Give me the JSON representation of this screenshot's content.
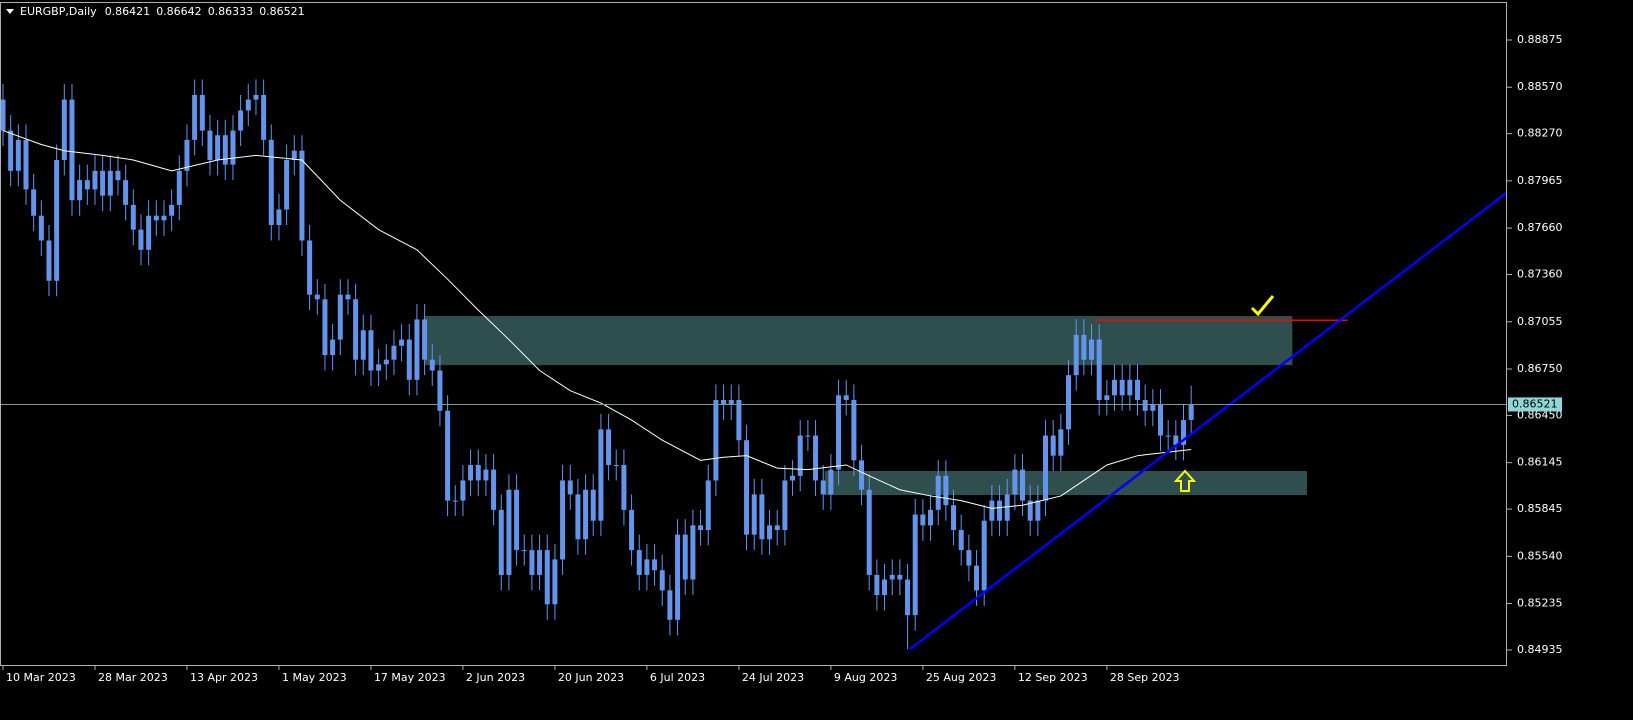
{
  "chart_data": {
    "type": "candlestick",
    "title": "EURGBP,Daily",
    "ylim": [
      0.84838,
      0.89114
    ],
    "xlim": [
      -0.39,
      196.2
    ],
    "yticks": [
      0.88875,
      {
        "value": 0.8857,
        "label": "0.88570"
      },
      {
        "value": 0.8827,
        "label": "0.88270"
      },
      0.87965,
      {
        "value": 0.8766,
        "label": "0.87660"
      },
      {
        "value": 0.8736,
        "label": "0.87360"
      },
      0.87055,
      {
        "value": 0.8675,
        "label": "0.86750"
      },
      {
        "value": 0.8645,
        "label": "0.86450"
      },
      0.86145,
      0.85845,
      {
        "value": 0.8554,
        "label": "0.85540"
      },
      0.85235,
      0.84935
    ],
    "xticks": [
      {
        "value": 0,
        "label": "10 Mar 2023"
      },
      {
        "value": 12,
        "label": "28 Mar 2023"
      },
      {
        "value": 24,
        "label": "13 Apr 2023"
      },
      {
        "value": 36,
        "label": "1 May 2023"
      },
      {
        "value": 48,
        "label": "17 May 2023"
      },
      {
        "value": 60,
        "label": "2 Jun 2023"
      },
      {
        "value": 72,
        "label": "20 Jun 2023"
      },
      {
        "value": 84,
        "label": "6 Jul 2023"
      },
      {
        "value": 96,
        "label": "24 Jul 2023"
      },
      {
        "value": 108,
        "label": "9 Aug 2023"
      },
      {
        "value": 120,
        "label": "25 Aug 2023"
      },
      {
        "value": 132,
        "label": "12 Sep 2023"
      },
      {
        "value": 144,
        "label": "28 Sep 2023"
      }
    ],
    "color": "#6495ed",
    "open": [
      0.8849,
      0.8829,
      0.8803,
      0.8823,
      0.8791,
      0.8774,
      0.8758,
      0.8732,
      0.881,
      0.8849,
      0.8784,
      0.8797,
      0.8791,
      0.8803,
      0.8787,
      0.8803,
      0.8797,
      0.8781,
      0.8765,
      0.8752,
      0.8774,
      0.8771,
      0.8774,
      0.8781,
      0.8803,
      0.8823,
      0.8852,
      0.8829,
      0.881,
      0.8826,
      0.8807,
      0.8829,
      0.8842,
      0.8849,
      0.8852,
      0.8823,
      0.8768,
      0.8778,
      0.881,
      0.8816,
      0.8758,
      0.8723,
      0.872,
      0.8684,
      0.8694,
      0.8723,
      0.872,
      0.8681,
      0.87,
      0.8674,
      0.8678,
      0.8681,
      0.869,
      0.8694,
      0.8668,
      0.8707,
      0.8681,
      0.8674,
      0.8648,
      0.859,
      0.859,
      0.8603,
      0.8613,
      0.8603,
      0.861,
      0.8584,
      0.8542,
      0.8597,
      0.8558,
      0.8558,
      0.8542,
      0.8558,
      0.8523,
      0.8552,
      0.8603,
      0.8594,
      0.8565,
      0.8597,
      0.8577,
      0.8636,
      0.8613,
      0.8613,
      0.8584,
      0.8558,
      0.8542,
      0.8552,
      0.8545,
      0.8532,
      0.8513,
      0.8568,
      0.8539,
      0.8574,
      0.8571,
      0.8603,
      0.8655,
      0.8652,
      0.8655,
      0.8629,
      0.8568,
      0.8594,
      0.8565,
      0.8574,
      0.8571,
      0.8603,
      0.8606,
      0.8632,
      0.8632,
      0.8603,
      0.8594,
      0.861,
      0.8658,
      0.8655,
      0.8616,
      0.8597,
      0.8542,
      0.8529,
      0.8539,
      0.8542,
      0.8539,
      0.8516,
      0.8581,
      0.8574,
      0.8584,
      0.8606,
      0.8587,
      0.8571,
      0.8558,
      0.8548,
      0.8532,
      0.8577,
      0.859,
      0.8577,
      0.8594,
      0.861,
      0.859,
      0.8577,
      0.859,
      0.8632,
      0.8619,
      0.8636,
      0.8671,
      0.8697,
      0.8681,
      0.8694,
      0.8655,
      0.8658,
      0.8668,
      0.8658,
      0.8668,
      0.8655,
      0.8648,
      0.8652,
      0.8632,
      0.8632,
      0.8626,
      0.86421
    ],
    "high": [
      0.8859,
      0.8839,
      0.8833,
      0.8833,
      0.8801,
      0.8784,
      0.8768,
      0.882,
      0.8859,
      0.8859,
      0.8807,
      0.8807,
      0.8813,
      0.8813,
      0.8813,
      0.8813,
      0.8807,
      0.8791,
      0.8775,
      0.8784,
      0.8784,
      0.8784,
      0.8791,
      0.8813,
      0.8833,
      0.8862,
      0.8862,
      0.8839,
      0.8836,
      0.8836,
      0.8839,
      0.8852,
      0.8859,
      0.8862,
      0.8862,
      0.8833,
      0.8788,
      0.882,
      0.8826,
      0.8826,
      0.8768,
      0.8733,
      0.873,
      0.8704,
      0.8733,
      0.8733,
      0.873,
      0.871,
      0.871,
      0.8688,
      0.8691,
      0.87,
      0.8704,
      0.8704,
      0.8717,
      0.8717,
      0.8691,
      0.8684,
      0.8658,
      0.86,
      0.8613,
      0.8623,
      0.8623,
      0.862,
      0.862,
      0.8594,
      0.8607,
      0.8607,
      0.8568,
      0.8568,
      0.8568,
      0.8568,
      0.8562,
      0.8613,
      0.8613,
      0.8604,
      0.8607,
      0.8607,
      0.8646,
      0.8646,
      0.8623,
      0.8623,
      0.8594,
      0.8568,
      0.8562,
      0.8562,
      0.8555,
      0.8542,
      0.8578,
      0.8578,
      0.8584,
      0.8584,
      0.8613,
      0.8665,
      0.8665,
      0.8665,
      0.8665,
      0.8639,
      0.8604,
      0.8604,
      0.8584,
      0.8584,
      0.8613,
      0.8616,
      0.8642,
      0.8642,
      0.8642,
      0.8613,
      0.862,
      0.8668,
      0.8668,
      0.8665,
      0.8626,
      0.8607,
      0.8552,
      0.8549,
      0.8552,
      0.8552,
      0.8549,
      0.8591,
      0.8591,
      0.8594,
      0.8616,
      0.8616,
      0.8597,
      0.8581,
      0.8568,
      0.8558,
      0.8587,
      0.86,
      0.86,
      0.8604,
      0.862,
      0.862,
      0.86,
      0.86,
      0.8642,
      0.8642,
      0.8646,
      0.8681,
      0.8707,
      0.8707,
      0.8704,
      0.8704,
      0.8668,
      0.8678,
      0.8678,
      0.8678,
      0.8678,
      0.8665,
      0.8662,
      0.8662,
      0.8642,
      0.8642,
      0.8652,
      0.86642
    ],
    "low": [
      0.8819,
      0.8793,
      0.8793,
      0.8781,
      0.8764,
      0.8748,
      0.8722,
      0.8722,
      0.88,
      0.8774,
      0.8774,
      0.8781,
      0.8781,
      0.8777,
      0.8777,
      0.8787,
      0.8771,
      0.8755,
      0.8742,
      0.8742,
      0.8761,
      0.8761,
      0.8764,
      0.8771,
      0.8793,
      0.8813,
      0.8819,
      0.88,
      0.88,
      0.8797,
      0.8797,
      0.8819,
      0.8832,
      0.8839,
      0.8813,
      0.8758,
      0.8758,
      0.8768,
      0.88,
      0.8748,
      0.8713,
      0.871,
      0.8674,
      0.8674,
      0.8684,
      0.871,
      0.8671,
      0.8671,
      0.8664,
      0.8664,
      0.8668,
      0.8671,
      0.868,
      0.8658,
      0.8658,
      0.8671,
      0.8664,
      0.8638,
      0.858,
      0.858,
      0.858,
      0.8593,
      0.8593,
      0.8593,
      0.8574,
      0.8532,
      0.8532,
      0.8548,
      0.8548,
      0.8532,
      0.8532,
      0.8513,
      0.8513,
      0.8542,
      0.8584,
      0.8555,
      0.8555,
      0.8567,
      0.8567,
      0.8603,
      0.8603,
      0.8574,
      0.8548,
      0.8532,
      0.8532,
      0.8535,
      0.8522,
      0.8503,
      0.8503,
      0.8529,
      0.8529,
      0.8561,
      0.8561,
      0.8593,
      0.8642,
      0.8642,
      0.8619,
      0.8558,
      0.8558,
      0.8555,
      0.8555,
      0.8561,
      0.8561,
      0.8593,
      0.8596,
      0.8622,
      0.8593,
      0.8584,
      0.8584,
      0.86,
      0.8645,
      0.8606,
      0.8587,
      0.8532,
      0.8519,
      0.8519,
      0.8529,
      0.8529,
      0.8494,
      0.8506,
      0.8564,
      0.8564,
      0.8574,
      0.8577,
      0.8561,
      0.8548,
      0.8538,
      0.8522,
      0.8522,
      0.8567,
      0.8567,
      0.8567,
      0.8584,
      0.858,
      0.8567,
      0.8567,
      0.858,
      0.8609,
      0.8609,
      0.8626,
      0.8661,
      0.8671,
      0.8671,
      0.8645,
      0.8645,
      0.8648,
      0.8648,
      0.8648,
      0.8645,
      0.8638,
      0.8638,
      0.8622,
      0.8622,
      0.8616,
      0.8616,
      0.86333
    ],
    "close": [
      0.8829,
      0.8803,
      0.8823,
      0.8791,
      0.8774,
      0.8758,
      0.8732,
      0.881,
      0.8849,
      0.8784,
      0.8797,
      0.8791,
      0.8803,
      0.8787,
      0.8803,
      0.8797,
      0.8781,
      0.8765,
      0.8752,
      0.8774,
      0.8771,
      0.8774,
      0.8781,
      0.8803,
      0.8823,
      0.8852,
      0.8829,
      0.881,
      0.8826,
      0.8807,
      0.8829,
      0.8842,
      0.8849,
      0.8852,
      0.8823,
      0.8768,
      0.8778,
      0.881,
      0.8816,
      0.8758,
      0.8723,
      0.872,
      0.8684,
      0.8694,
      0.8723,
      0.872,
      0.8681,
      0.87,
      0.8674,
      0.8678,
      0.8681,
      0.869,
      0.8694,
      0.8668,
      0.8707,
      0.8681,
      0.8674,
      0.8648,
      0.859,
      0.859,
      0.8603,
      0.8613,
      0.8603,
      0.861,
      0.8584,
      0.8542,
      0.8597,
      0.8558,
      0.8558,
      0.8542,
      0.8558,
      0.8523,
      0.8552,
      0.8603,
      0.8594,
      0.8565,
      0.8597,
      0.8577,
      0.8636,
      0.8613,
      0.8613,
      0.8584,
      0.8558,
      0.8542,
      0.8552,
      0.8545,
      0.8532,
      0.8513,
      0.8568,
      0.8539,
      0.8574,
      0.8571,
      0.8603,
      0.8655,
      0.8652,
      0.8655,
      0.8629,
      0.8568,
      0.8594,
      0.8565,
      0.8574,
      0.8571,
      0.8603,
      0.8606,
      0.8632,
      0.8632,
      0.8603,
      0.8594,
      0.861,
      0.8658,
      0.8655,
      0.8616,
      0.8597,
      0.8542,
      0.8529,
      0.8539,
      0.8542,
      0.8539,
      0.8516,
      0.8581,
      0.8574,
      0.8584,
      0.8606,
      0.8587,
      0.8571,
      0.8558,
      0.8548,
      0.8532,
      0.8577,
      0.859,
      0.8577,
      0.8594,
      0.861,
      0.859,
      0.8577,
      0.859,
      0.8632,
      0.8619,
      0.8636,
      0.8671,
      0.8697,
      0.8681,
      0.8694,
      0.8655,
      0.8658,
      0.8668,
      0.8658,
      0.8668,
      0.8655,
      0.8648,
      0.8652,
      0.8632,
      0.8632,
      0.8626,
      0.8642,
      0.86521
    ],
    "ma": {
      "color": "#ffffff",
      "x": [
        0,
        5,
        8,
        13,
        17,
        22,
        28,
        33,
        39,
        44,
        49,
        54,
        58,
        62,
        66,
        70,
        74,
        78,
        82,
        86,
        91,
        94,
        97,
        101,
        105,
        110,
        113,
        117,
        121,
        125,
        129,
        133,
        138,
        141,
        144,
        148,
        155
      ],
      "values": [
        0.8829,
        0.882,
        0.8816,
        0.8813,
        0.881,
        0.8803,
        0.881,
        0.8813,
        0.881,
        0.8784,
        0.8765,
        0.8752,
        0.8733,
        0.8713,
        0.8694,
        0.8674,
        0.8661,
        0.8653,
        0.8642,
        0.8629,
        0.8616,
        0.8618,
        0.8619,
        0.8611,
        0.861,
        0.8613,
        0.8606,
        0.8597,
        0.8593,
        0.859,
        0.8585,
        0.8587,
        0.8593,
        0.8603,
        0.8613,
        0.8619,
        0.8623
      ]
    },
    "zones": [
      {
        "color": "#2f4f4f",
        "x": [
          55,
          168.2
        ],
        "values": [
          0.87092,
          0.86775
        ]
      },
      {
        "color": "#2f4f4f",
        "x": [
          107.2,
          170.1
        ],
        "values": [
          0.86091,
          0.85936
        ]
      }
    ],
    "trendline": {
      "color": "#0000ff",
      "x": [
        118.3,
        196.2
      ],
      "values": [
        0.8494,
        0.8789
      ]
    },
    "level": {
      "color": "#ff0000",
      "x": [
        142.4,
        175.4
      ],
      "values": [
        0.87065,
        0.87065
      ]
    }
  }
}
